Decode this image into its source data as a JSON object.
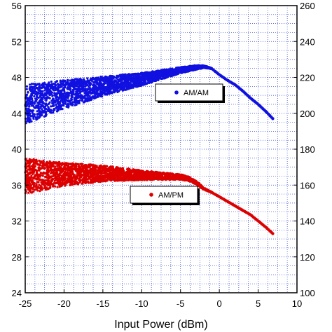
{
  "chart_data": {
    "type": "scatter",
    "title": "",
    "xlabel": "Input Power (dBm)",
    "ylabel_left": "",
    "ylabel_right": "",
    "xlim": [
      -25,
      10
    ],
    "ylim_left": [
      24,
      56
    ],
    "ylim_right": [
      100,
      260
    ],
    "x_ticks": [
      "-25",
      "-20",
      "-15",
      "-10",
      "-5",
      "0",
      "5",
      "10"
    ],
    "y_left_ticks": [
      "24",
      "28",
      "32",
      "36",
      "40",
      "44",
      "48",
      "52",
      "56"
    ],
    "y_right_ticks": [
      "100",
      "120",
      "140",
      "160",
      "180",
      "200",
      "220",
      "240",
      "260"
    ],
    "grid": true,
    "series": [
      {
        "name": "AM/AM",
        "axis": "left",
        "color": "#1010e0",
        "trend_x": [
          -25,
          -20,
          -15,
          -10,
          -5,
          -3,
          -2,
          -1,
          0,
          1,
          2,
          3,
          4,
          5,
          6,
          7
        ],
        "trend_y": [
          45.0,
          46.1,
          47.0,
          47.8,
          48.8,
          49.1,
          49.2,
          49.0,
          48.3,
          47.7,
          47.2,
          46.5,
          45.7,
          45.0,
          44.2,
          43.3
        ],
        "spread_y": [
          2.2,
          1.6,
          1.1,
          0.7,
          0.35,
          0.25,
          0.15,
          0.05,
          0.0,
          0.0,
          0.0,
          0.0,
          0.0,
          0.0,
          0.0,
          0.0
        ],
        "legend_position": "center-right"
      },
      {
        "name": "AM/PM",
        "axis": "left",
        "color": "#dd0000",
        "trend_x": [
          -25,
          -20,
          -15,
          -10,
          -5,
          -4,
          -3,
          -2,
          -1,
          0,
          1,
          2,
          3,
          4,
          5,
          6,
          7
        ],
        "trend_y": [
          37.0,
          37.2,
          37.3,
          37.1,
          36.9,
          36.7,
          36.3,
          35.6,
          35.2,
          34.7,
          34.2,
          33.7,
          33.2,
          32.7,
          32.0,
          31.3,
          30.5
        ],
        "spread_y": [
          2.0,
          1.3,
          0.9,
          0.55,
          0.3,
          0.25,
          0.2,
          0.12,
          0.05,
          0.0,
          0.0,
          0.0,
          0.0,
          0.0,
          0.0,
          0.0,
          0.0
        ],
        "legend_position": "center-right"
      }
    ]
  }
}
